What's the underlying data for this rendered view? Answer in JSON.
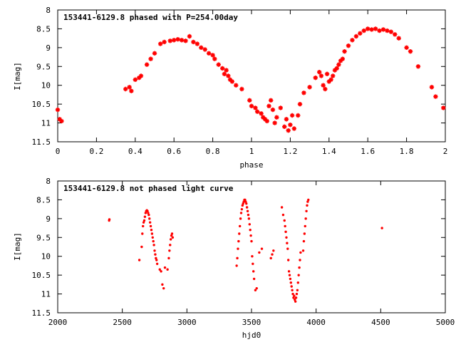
{
  "chart_data": [
    {
      "type": "scatter",
      "title": "153441-6129.8 phased with P=254.00day",
      "xlabel": "phase",
      "ylabel": "I[mag]",
      "xlim": [
        0,
        2
      ],
      "ylim": [
        8,
        11.5
      ],
      "y_inverted": true,
      "xticks": [
        "0",
        "0.2",
        "0.4",
        "0.6",
        "0.8",
        "1",
        "1.2",
        "1.4",
        "1.6",
        "1.8",
        "2"
      ],
      "yticks": [
        "8",
        "8.5",
        "9",
        "9.5",
        "10",
        "10.5",
        "11",
        "11.5"
      ],
      "grid": false,
      "color": "#ff0000",
      "marker": "star",
      "x": [
        0.0,
        0.01,
        0.02,
        0.35,
        0.37,
        0.38,
        0.4,
        0.42,
        0.43,
        0.46,
        0.48,
        0.5,
        0.53,
        0.55,
        0.58,
        0.6,
        0.62,
        0.64,
        0.66,
        0.68,
        0.7,
        0.72,
        0.74,
        0.76,
        0.78,
        0.8,
        0.81,
        0.83,
        0.85,
        0.86,
        0.87,
        0.88,
        0.89,
        0.9,
        0.92,
        0.95,
        0.99,
        1.0,
        1.02,
        1.03,
        1.05,
        1.06,
        1.07,
        1.08,
        1.09,
        1.1,
        1.11,
        1.12,
        1.13,
        1.15,
        1.17,
        1.18,
        1.19,
        1.2,
        1.21,
        1.22,
        1.24,
        1.25,
        1.27,
        1.3,
        1.33,
        1.35,
        1.36,
        1.37,
        1.38,
        1.39,
        1.4,
        1.41,
        1.42,
        1.43,
        1.44,
        1.45,
        1.46,
        1.47,
        1.48,
        1.5,
        1.52,
        1.54,
        1.56,
        1.58,
        1.6,
        1.62,
        1.64,
        1.66,
        1.68,
        1.7,
        1.72,
        1.74,
        1.76,
        1.8,
        1.82,
        1.86,
        1.93,
        1.95,
        1.99
      ],
      "y": [
        10.65,
        10.9,
        10.95,
        10.1,
        10.05,
        10.15,
        9.85,
        9.8,
        9.75,
        9.45,
        9.3,
        9.15,
        8.9,
        8.85,
        8.82,
        8.8,
        8.78,
        8.8,
        8.82,
        8.7,
        8.85,
        8.9,
        9.0,
        9.05,
        9.15,
        9.2,
        9.3,
        9.45,
        9.55,
        9.7,
        9.6,
        9.75,
        9.85,
        9.9,
        10.0,
        10.1,
        10.4,
        10.55,
        10.6,
        10.7,
        10.75,
        10.85,
        10.9,
        10.95,
        10.55,
        10.4,
        10.65,
        11.0,
        10.85,
        10.6,
        11.1,
        10.9,
        11.2,
        11.05,
        10.8,
        11.15,
        10.8,
        10.5,
        10.2,
        10.05,
        9.8,
        9.65,
        9.75,
        10.0,
        10.1,
        9.7,
        9.9,
        9.85,
        9.75,
        9.6,
        9.55,
        9.45,
        9.35,
        9.3,
        9.1,
        8.95,
        8.8,
        8.7,
        8.62,
        8.55,
        8.5,
        8.52,
        8.5,
        8.55,
        8.52,
        8.55,
        8.58,
        8.65,
        8.75,
        9.0,
        9.1,
        9.5,
        10.05,
        10.3,
        10.6
      ]
    },
    {
      "type": "scatter",
      "title": "153441-6129.8 not phased light curve",
      "xlabel": "hjd0",
      "ylabel": "I[mag]",
      "xlim": [
        2000,
        5000
      ],
      "ylim": [
        8,
        11.5
      ],
      "y_inverted": true,
      "xticks": [
        "2000",
        "2500",
        "3000",
        "3500",
        "4000",
        "4500",
        "5000"
      ],
      "yticks": [
        "8",
        "8.5",
        "9",
        "9.5",
        "10",
        "10.5",
        "11",
        "11.5"
      ],
      "grid": false,
      "color": "#ff0000",
      "marker": "dot",
      "x": [
        2398,
        2400,
        2632,
        2650,
        2655,
        2660,
        2665,
        2670,
        2675,
        2680,
        2685,
        2690,
        2695,
        2700,
        2705,
        2710,
        2715,
        2720,
        2725,
        2730,
        2735,
        2740,
        2745,
        2750,
        2755,
        2760,
        2765,
        2770,
        2790,
        2800,
        2810,
        2820,
        2830,
        2850,
        2860,
        2865,
        2870,
        2875,
        2880,
        2885,
        2890,
        3385,
        3390,
        3395,
        3400,
        3405,
        3410,
        3415,
        3420,
        3425,
        3430,
        3435,
        3440,
        3445,
        3450,
        3455,
        3460,
        3465,
        3470,
        3475,
        3480,
        3485,
        3490,
        3495,
        3500,
        3505,
        3510,
        3515,
        3520,
        3530,
        3540,
        3560,
        3580,
        3650,
        3660,
        3670,
        3735,
        3745,
        3755,
        3760,
        3765,
        3770,
        3775,
        3780,
        3785,
        3790,
        3795,
        3800,
        3805,
        3810,
        3815,
        3820,
        3825,
        3830,
        3835,
        3840,
        3845,
        3850,
        3855,
        3860,
        3865,
        3870,
        3875,
        3880,
        3900,
        3905,
        3910,
        3915,
        3920,
        3925,
        3930,
        3935,
        3940,
        4510
      ],
      "y": [
        9.05,
        9.02,
        10.1,
        9.75,
        9.4,
        9.2,
        9.1,
        9.05,
        8.95,
        8.85,
        8.8,
        8.78,
        8.8,
        8.85,
        8.9,
        9.0,
        9.1,
        9.2,
        9.3,
        9.4,
        9.5,
        9.6,
        9.7,
        9.85,
        9.95,
        10.05,
        10.1,
        10.2,
        10.35,
        10.4,
        10.75,
        10.85,
        10.3,
        10.35,
        10.05,
        9.85,
        9.7,
        9.55,
        9.45,
        9.4,
        9.5,
        10.25,
        10.05,
        9.8,
        9.6,
        9.4,
        9.2,
        9.0,
        8.85,
        8.75,
        8.65,
        8.6,
        8.55,
        8.5,
        8.5,
        8.55,
        8.6,
        8.7,
        8.8,
        8.9,
        9.0,
        9.15,
        9.3,
        9.45,
        9.6,
        10.0,
        10.2,
        10.4,
        10.6,
        10.9,
        10.85,
        9.9,
        9.8,
        10.05,
        9.95,
        9.85,
        8.7,
        8.9,
        9.05,
        9.2,
        9.35,
        9.5,
        9.65,
        9.8,
        10.1,
        10.4,
        10.5,
        10.6,
        10.7,
        10.8,
        10.9,
        11.0,
        11.1,
        11.05,
        11.15,
        11.2,
        11.1,
        11.0,
        10.9,
        10.7,
        10.5,
        10.3,
        10.1,
        9.9,
        9.85,
        9.6,
        9.4,
        9.2,
        9.0,
        8.8,
        8.65,
        8.55,
        8.5,
        9.25
      ]
    }
  ]
}
